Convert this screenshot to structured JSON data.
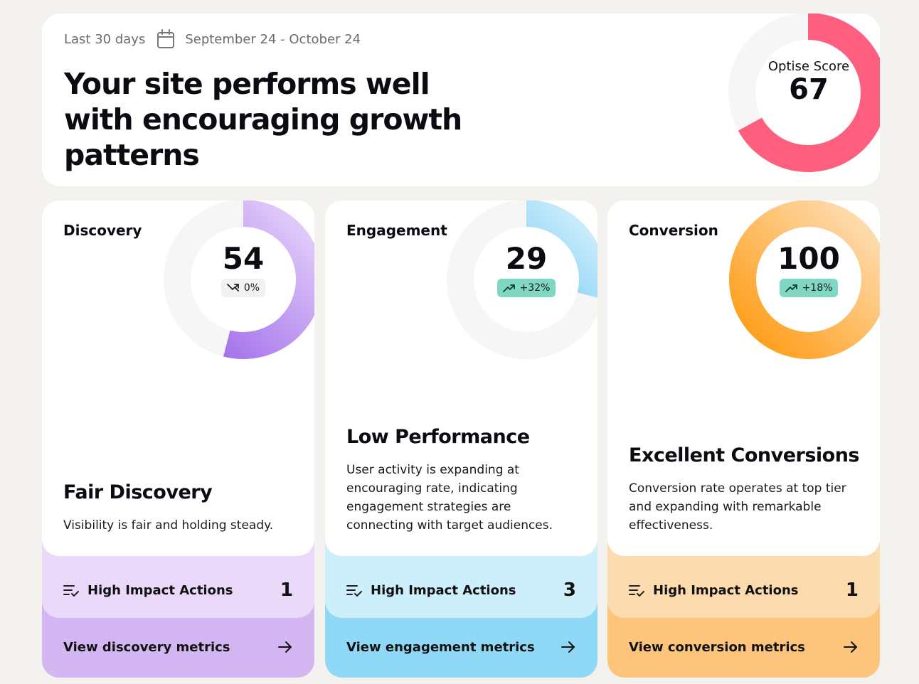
{
  "header": {
    "period_label": "Last 30 days",
    "date_range": "September 24 - October 24",
    "headline": "Your site performs well with encouraging growth patterns",
    "score_label": "Optise Score",
    "score_value": "67",
    "score": 67,
    "score_color": "#ff5f7e"
  },
  "cards": [
    {
      "title": "Discovery",
      "score_text": "54",
      "score": 54,
      "trend": "0%",
      "trend_type": "neutral",
      "status_title": "Fair Discovery",
      "status_desc": "Visibility is fair and holding steady.",
      "actions_label": "High Impact Actions",
      "actions_count": "1",
      "link_label": "View discovery metrics",
      "colors": {
        "ring_start": "#9b63e8",
        "ring_end": "#e6d3fb",
        "mid": "#ead9f8",
        "bottom": "#d4b7f2"
      }
    },
    {
      "title": "Engagement",
      "score_text": "29",
      "score": 29,
      "trend": "+32%",
      "trend_type": "up",
      "status_title": "Low Performance",
      "status_desc": "User activity is expanding at encouraging rate, indicating engagement strategies are connecting with target audiences.",
      "actions_label": "High Impact Actions",
      "actions_count": "3",
      "link_label": "View engagement metrics",
      "colors": {
        "ring_start": "#2fb2ec",
        "ring_end": "#d8f1fc",
        "mid": "#cdeefb",
        "bottom": "#8fd9f7"
      }
    },
    {
      "title": "Conversion",
      "score_text": "100",
      "score": 100,
      "trend": "+18%",
      "trend_type": "up",
      "status_title": "Excellent Conversions",
      "status_desc": "Conversion rate operates at top tier and expanding with remarkable effectiveness.",
      "actions_label": "High Impact Actions",
      "actions_count": "1",
      "link_label": "View conversion metrics",
      "colors": {
        "ring_start": "#ff9a10",
        "ring_end": "#fde1bc",
        "mid": "#fcdcae",
        "bottom": "#fdc57c"
      }
    }
  ]
}
